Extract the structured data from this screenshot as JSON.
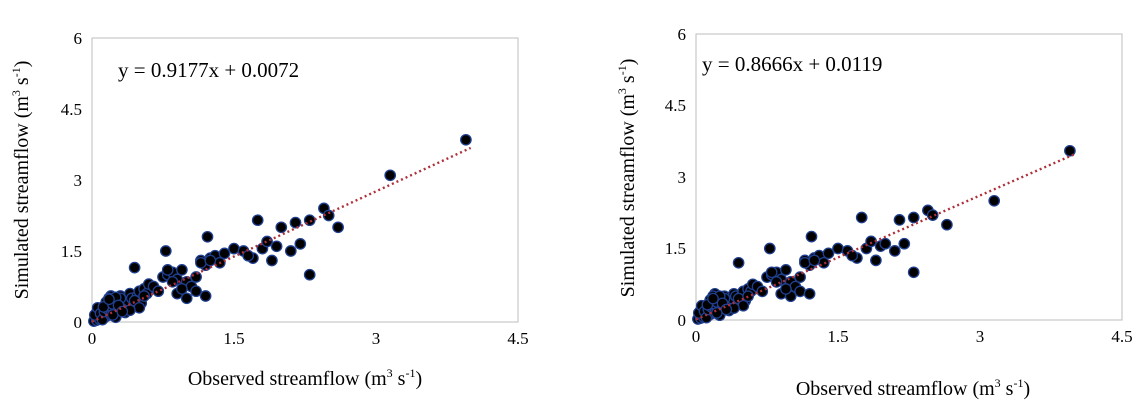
{
  "chart_data": [
    {
      "type": "scatter",
      "title": "",
      "xlabel": "Observed streamflow (m",
      "xlabel_sup": "3",
      "xlabel_mid": " s",
      "xlabel_sup2": "-1",
      "xlabel_end": ")",
      "ylabel": "Simulated streamflow (m",
      "ylabel_sup": "3",
      "ylabel_mid": " s",
      "ylabel_sup2": "-1",
      "ylabel_end": ")",
      "xlim": [
        0,
        4.5
      ],
      "ylim": [
        0,
        6
      ],
      "xticks": [
        "0",
        "1.5",
        "3",
        "4.5"
      ],
      "yticks": [
        "0",
        "1.5",
        "3",
        "4.5",
        "6"
      ],
      "trendline": {
        "slope": 0.9177,
        "intercept": 0.0072,
        "x_range": [
          0,
          4.0
        ],
        "color": "#b0303a",
        "style": "dotted"
      },
      "equation": "y = 0.9177x + 0.0072",
      "grid": false,
      "marker_fill": "#000000",
      "marker_edge": "#1f3f8f",
      "x": [
        0.02,
        0.05,
        0.08,
        0.1,
        0.12,
        0.15,
        0.05,
        0.07,
        0.03,
        0.06,
        0.09,
        0.11,
        0.13,
        0.14,
        0.16,
        0.18,
        0.2,
        0.22,
        0.25,
        0.27,
        0.3,
        0.33,
        0.2,
        0.18,
        0.15,
        0.12,
        0.25,
        0.22,
        0.28,
        0.3,
        0.35,
        0.38,
        0.4,
        0.42,
        0.45,
        0.48,
        0.5,
        0.52,
        0.55,
        0.58,
        0.6,
        0.65,
        0.7,
        0.45,
        0.5,
        0.55,
        0.35,
        0.4,
        0.3,
        0.25,
        0.18,
        0.22,
        0.28,
        0.32,
        0.75,
        0.8,
        0.85,
        0.9,
        0.95,
        1.0,
        1.05,
        1.1,
        1.15,
        1.2,
        1.25,
        1.3,
        1.35,
        1.4,
        1.5,
        0.9,
        1.0,
        1.1,
        1.2,
        0.8,
        0.85,
        0.95,
        1.15,
        1.25,
        1.6,
        1.7,
        1.75,
        1.8,
        1.9,
        1.95,
        2.0,
        1.65,
        1.85,
        2.1,
        2.15,
        2.2,
        2.3,
        2.45,
        2.5,
        2.6,
        3.15,
        3.95,
        0.45,
        0.78,
        1.22,
        2.3
      ],
      "y": [
        0.02,
        0.04,
        0.06,
        0.1,
        0.08,
        0.12,
        0.2,
        0.25,
        0.15,
        0.3,
        0.18,
        0.05,
        0.22,
        0.35,
        0.28,
        0.4,
        0.15,
        0.3,
        0.45,
        0.2,
        0.35,
        0.4,
        0.55,
        0.5,
        0.42,
        0.32,
        0.1,
        0.38,
        0.25,
        0.55,
        0.3,
        0.45,
        0.6,
        0.5,
        0.35,
        0.55,
        0.65,
        0.4,
        0.7,
        0.6,
        0.8,
        0.75,
        0.65,
        0.45,
        0.3,
        0.55,
        0.2,
        0.25,
        0.5,
        0.52,
        0.48,
        0.15,
        0.35,
        0.22,
        0.95,
        1.0,
        1.05,
        0.9,
        1.1,
        0.85,
        0.75,
        0.95,
        1.3,
        1.2,
        1.35,
        1.4,
        1.25,
        1.45,
        1.55,
        0.6,
        0.5,
        0.65,
        0.55,
        1.1,
        0.85,
        0.7,
        1.25,
        1.3,
        1.5,
        1.35,
        2.15,
        1.55,
        1.3,
        1.6,
        2.0,
        1.4,
        1.7,
        1.5,
        2.1,
        1.65,
        2.15,
        2.4,
        2.25,
        2.0,
        3.1,
        3.85,
        1.15,
        1.5,
        1.8,
        1.0
      ]
    },
    {
      "type": "scatter",
      "title": "",
      "xlabel": "Observed streamflow (m",
      "xlabel_sup": "3",
      "xlabel_mid": " s",
      "xlabel_sup2": "-1",
      "xlabel_end": ")",
      "ylabel": "Simulated streamflow (m",
      "ylabel_sup": "3",
      "ylabel_mid": " s",
      "ylabel_sup2": "-1",
      "ylabel_end": ")",
      "xlim": [
        0,
        4.5
      ],
      "ylim": [
        0,
        6
      ],
      "xticks": [
        "0",
        "1.5",
        "3",
        "4.5"
      ],
      "yticks": [
        "0",
        "1.5",
        "3",
        "4.5",
        "6"
      ],
      "trendline": {
        "slope": 0.8666,
        "intercept": 0.0119,
        "x_range": [
          0,
          4.0
        ],
        "color": "#b0303a",
        "style": "dotted"
      },
      "equation": "y = 0.8666x + 0.0119",
      "grid": false,
      "marker_fill": "#000000",
      "marker_edge": "#1f3f8f",
      "x": [
        0.02,
        0.05,
        0.08,
        0.1,
        0.12,
        0.15,
        0.05,
        0.07,
        0.03,
        0.06,
        0.09,
        0.11,
        0.13,
        0.14,
        0.16,
        0.18,
        0.2,
        0.22,
        0.25,
        0.27,
        0.3,
        0.33,
        0.2,
        0.18,
        0.15,
        0.12,
        0.25,
        0.22,
        0.28,
        0.3,
        0.35,
        0.38,
        0.4,
        0.42,
        0.45,
        0.48,
        0.5,
        0.52,
        0.55,
        0.58,
        0.6,
        0.65,
        0.7,
        0.45,
        0.5,
        0.55,
        0.35,
        0.4,
        0.3,
        0.25,
        0.18,
        0.22,
        0.28,
        0.32,
        0.75,
        0.8,
        0.85,
        0.9,
        0.95,
        1.0,
        1.05,
        1.1,
        1.15,
        1.2,
        1.25,
        1.3,
        1.35,
        1.4,
        1.5,
        0.9,
        1.0,
        1.1,
        1.2,
        0.8,
        0.85,
        0.95,
        1.15,
        1.25,
        1.6,
        1.7,
        1.75,
        1.8,
        1.9,
        1.95,
        2.0,
        1.65,
        1.85,
        2.1,
        2.15,
        2.2,
        2.3,
        2.45,
        2.5,
        2.65,
        3.15,
        3.95,
        0.45,
        0.78,
        1.22,
        2.3
      ],
      "y": [
        0.02,
        0.04,
        0.06,
        0.1,
        0.08,
        0.12,
        0.2,
        0.25,
        0.15,
        0.3,
        0.18,
        0.05,
        0.22,
        0.35,
        0.28,
        0.4,
        0.15,
        0.3,
        0.42,
        0.2,
        0.35,
        0.4,
        0.55,
        0.5,
        0.42,
        0.32,
        0.1,
        0.38,
        0.25,
        0.5,
        0.3,
        0.45,
        0.55,
        0.5,
        0.35,
        0.5,
        0.6,
        0.4,
        0.65,
        0.6,
        0.75,
        0.7,
        0.6,
        0.45,
        0.3,
        0.5,
        0.2,
        0.25,
        0.45,
        0.5,
        0.45,
        0.15,
        0.35,
        0.22,
        0.9,
        0.95,
        1.0,
        0.85,
        1.05,
        0.8,
        0.7,
        0.9,
        1.25,
        1.15,
        1.3,
        1.35,
        1.2,
        1.4,
        1.5,
        0.55,
        0.5,
        0.6,
        0.55,
        1.0,
        0.8,
        0.65,
        1.2,
        1.25,
        1.45,
        1.3,
        2.15,
        1.5,
        1.25,
        1.55,
        1.6,
        1.35,
        1.65,
        1.45,
        2.1,
        1.6,
        2.15,
        2.3,
        2.2,
        2.0,
        2.5,
        3.55,
        1.2,
        1.5,
        1.75,
        1.0
      ]
    }
  ]
}
